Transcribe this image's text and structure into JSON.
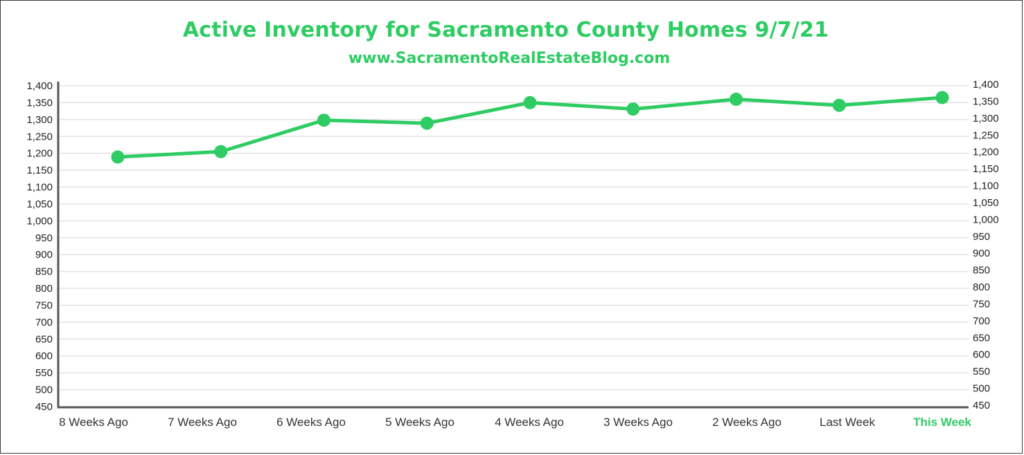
{
  "title": "Active Inventory for Sacramento County Homes 9/7/21",
  "subtitle": "www.SacramentoRealEstateBlog.com",
  "colors": {
    "accent": "#2ecc63",
    "axis": "#555555",
    "grid": "#e2e2e2",
    "text": "#222222"
  },
  "chart_data": {
    "type": "line",
    "title": "Active Inventory for Sacramento County Homes 9/7/21",
    "subtitle": "www.SacramentoRealEstateBlog.com",
    "categories": [
      "8 Weeks Ago",
      "7 Weeks Ago",
      "6 Weeks Ago",
      "5 Weeks Ago",
      "4 Weeks Ago",
      "3 Weeks Ago",
      "2 Weeks Ago",
      "Last Week",
      "This Week"
    ],
    "highlight_category": "This Week",
    "series": [
      {
        "values": [
          1189,
          1205,
          1298,
          1289,
          1350,
          1331,
          1360,
          1342,
          1365
        ]
      }
    ],
    "ylim": [
      450,
      1400
    ],
    "yticks": [
      "450",
      "500",
      "550",
      "600",
      "650",
      "700",
      "750",
      "800",
      "850",
      "900",
      "950",
      "1,000",
      "1,050",
      "1,100",
      "1,150",
      "1,200",
      "1,250",
      "1,300",
      "1,350",
      "1,400"
    ],
    "secondary_axis": true,
    "grid": true,
    "legend": "none"
  }
}
